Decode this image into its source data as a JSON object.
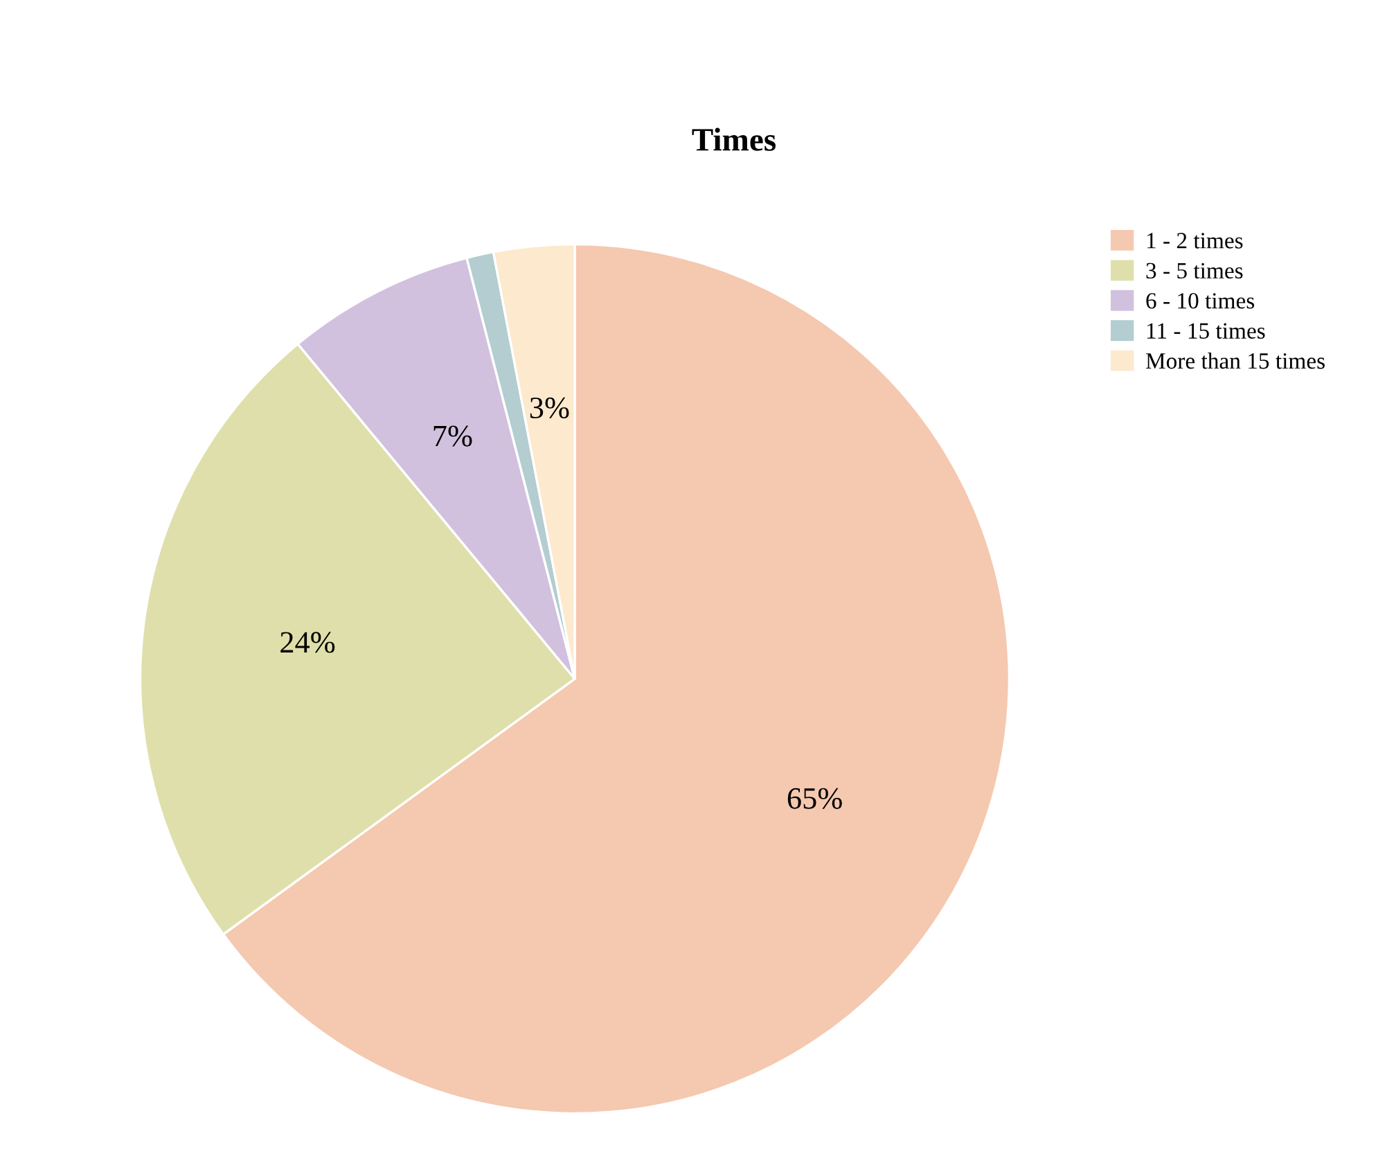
{
  "chart_data": {
    "type": "pie",
    "title": "Times",
    "categories": [
      "1 - 2 times",
      "3 - 5 times",
      "6 - 10 times",
      "11 - 15 times",
      "More than 15 times"
    ],
    "values": [
      65,
      24,
      7,
      1,
      3
    ],
    "value_labels": [
      "65%",
      "24%",
      "7%",
      null,
      "3%"
    ],
    "colors": [
      "#f5c8b0",
      "#dfdfab",
      "#d1c1de",
      "#b3cdd0",
      "#fde9cd"
    ],
    "legend": "top right"
  }
}
